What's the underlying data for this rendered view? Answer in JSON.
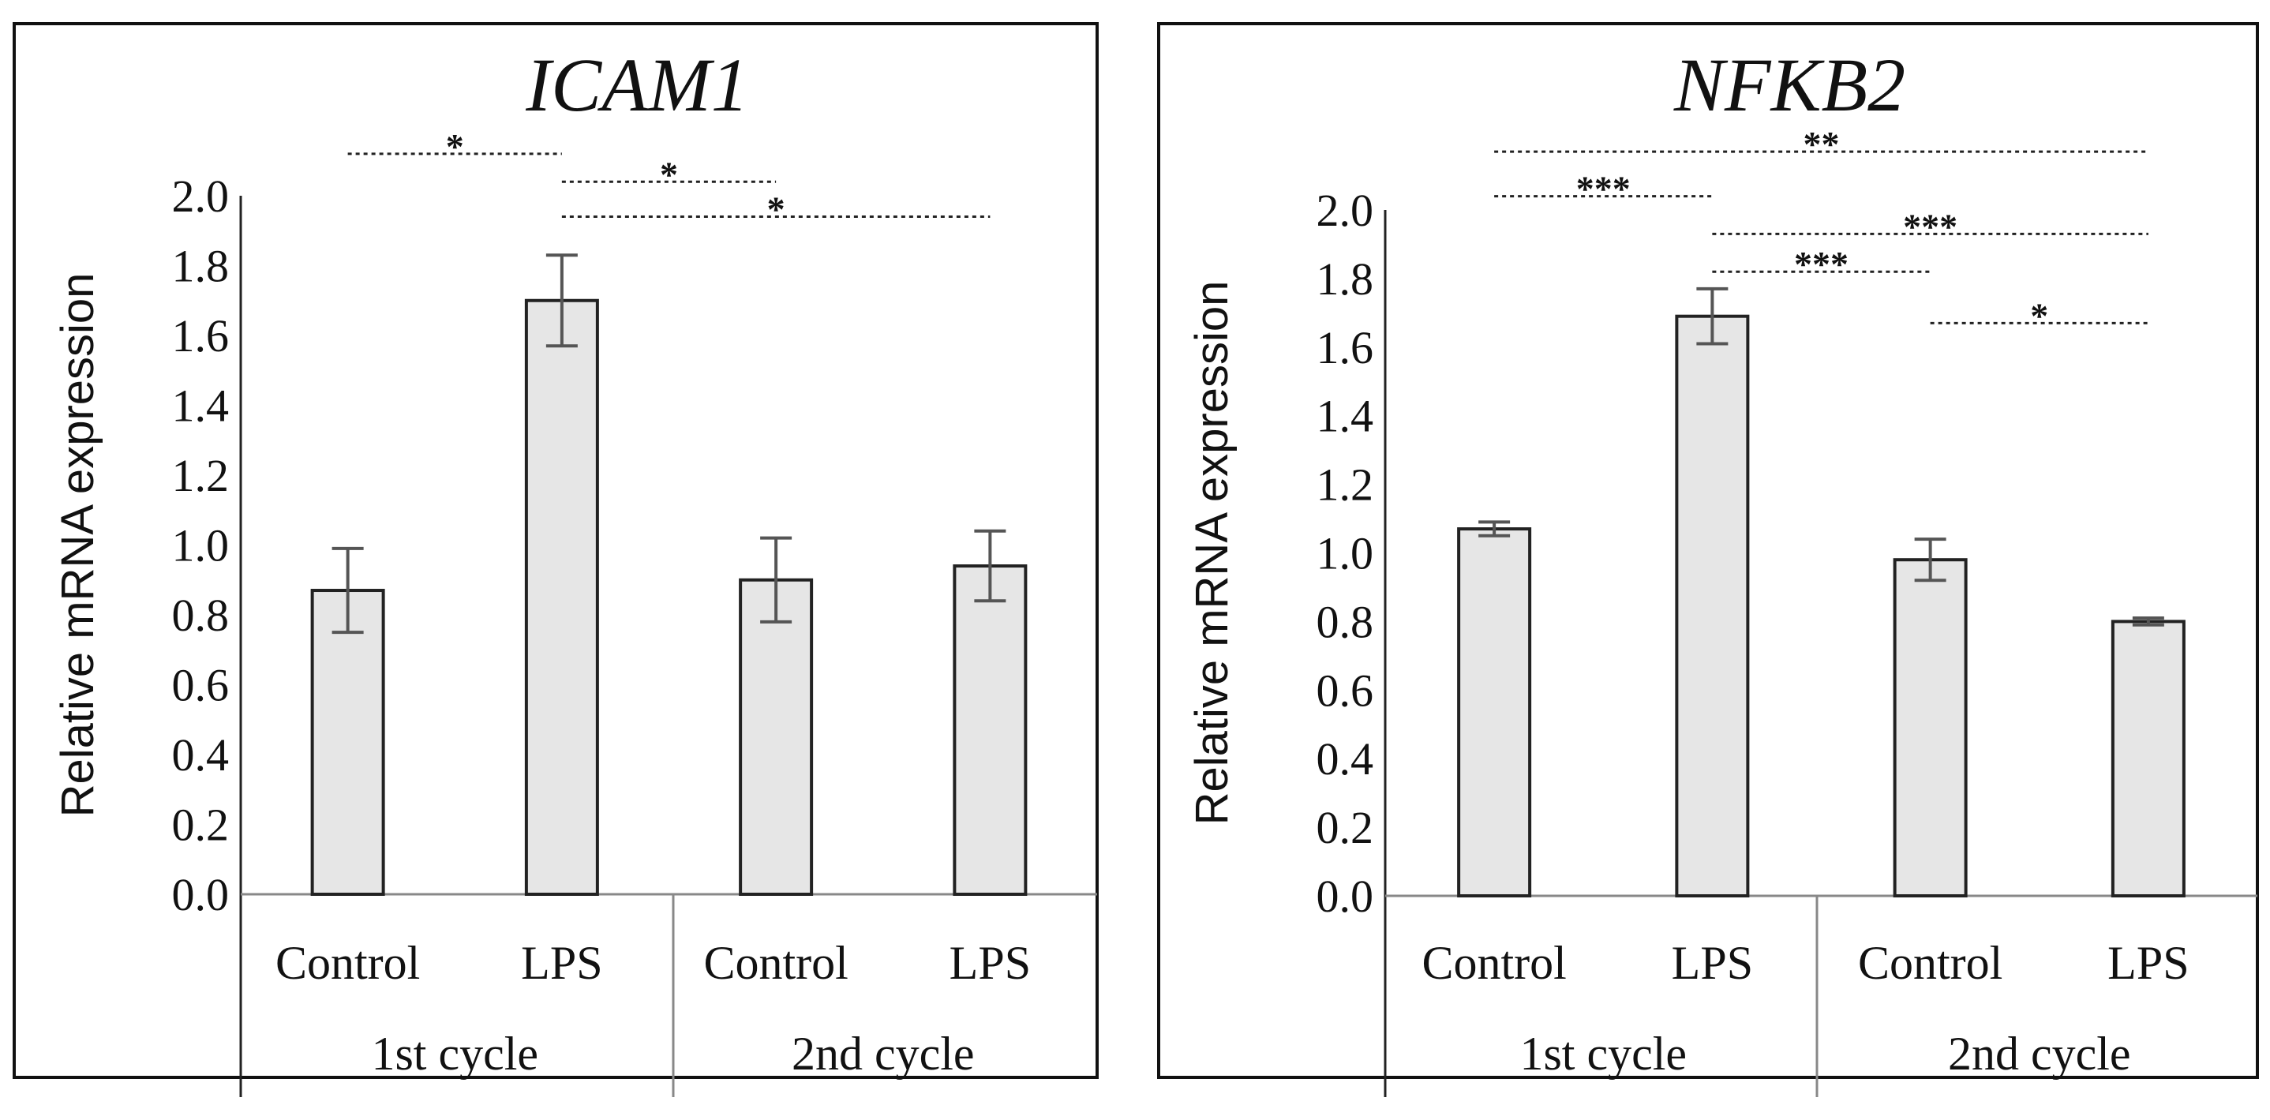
{
  "chart_data": [
    {
      "type": "bar",
      "title": "ICAM1",
      "ylabel": "Relative mRNA expression",
      "ylim": [
        0,
        2.0
      ],
      "yticks": [
        "0.0",
        "0.2",
        "0.4",
        "0.6",
        "0.8",
        "1.0",
        "1.2",
        "1.4",
        "1.6",
        "1.8",
        "2.0"
      ],
      "categories": [
        "Control",
        "LPS",
        "Control",
        "LPS"
      ],
      "groups": [
        "1st cycle",
        "2nd cycle"
      ],
      "values": [
        0.87,
        1.7,
        0.9,
        0.94
      ],
      "errors": [
        0.12,
        0.13,
        0.12,
        0.1
      ],
      "colors": {
        "bar": "#e6e6e6",
        "edge": "#222222",
        "error": "#555555"
      },
      "significance": [
        {
          "from": 0,
          "to": 1,
          "y": 2.12,
          "label": "*"
        },
        {
          "from": 1,
          "to": 2,
          "y": 2.04,
          "label": "*"
        },
        {
          "from": 1,
          "to": 3,
          "y": 1.94,
          "label": "*"
        }
      ]
    },
    {
      "type": "bar",
      "title": "NFKB2",
      "ylabel": "Relative mRNA expression",
      "ylim": [
        0,
        2.0
      ],
      "yticks": [
        "0.0",
        "0.2",
        "0.4",
        "0.6",
        "0.8",
        "1.0",
        "1.2",
        "1.4",
        "1.6",
        "1.8",
        "2.0"
      ],
      "categories": [
        "Control",
        "LPS",
        "Control",
        "LPS"
      ],
      "groups": [
        "1st cycle",
        "2nd cycle"
      ],
      "values": [
        1.07,
        1.69,
        0.98,
        0.8
      ],
      "errors": [
        0.02,
        0.08,
        0.06,
        0.01
      ],
      "colors": {
        "bar": "#e6e6e6",
        "edge": "#222222",
        "error": "#555555"
      },
      "significance": [
        {
          "from": 0,
          "to": 3,
          "y": 2.17,
          "label": "**"
        },
        {
          "from": 0,
          "to": 1,
          "y": 2.04,
          "label": "***"
        },
        {
          "from": 1,
          "to": 3,
          "y": 1.93,
          "label": "***"
        },
        {
          "from": 1,
          "to": 2,
          "y": 1.82,
          "label": "***"
        },
        {
          "from": 2,
          "to": 3,
          "y": 1.67,
          "label": "*"
        }
      ]
    }
  ]
}
